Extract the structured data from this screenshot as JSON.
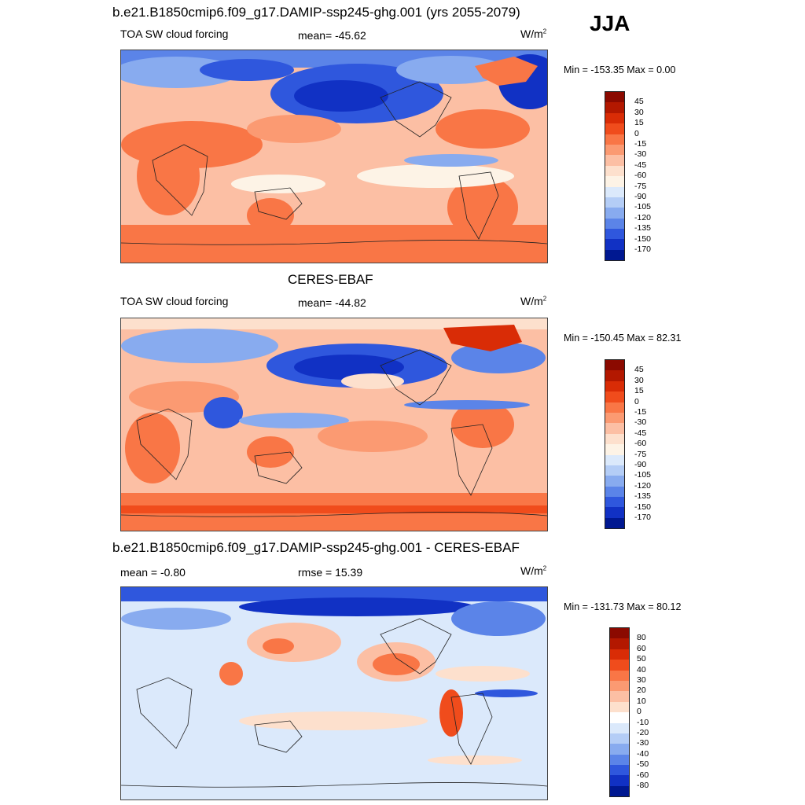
{
  "header": {
    "model_title": "b.e21.B1850cmip6.f09_g17.DAMIP-ssp245-ghg.001 (yrs 2055-2079)",
    "season": "JJA"
  },
  "panels": [
    {
      "id": "model",
      "title": "",
      "left_label": "TOA SW cloud forcing",
      "center_label": "mean= -45.62",
      "units": "W/m",
      "units_sup": "2",
      "minmax": "Min = -153.35 Max =   0.00",
      "colorbar": {
        "labels": [
          "45",
          "30",
          "15",
          "0",
          "-15",
          "-30",
          "-45",
          "-60",
          "-75",
          "-90",
          "-105",
          "-120",
          "-135",
          "-150",
          "-170"
        ],
        "colors": [
          "#8b0a00",
          "#b31800",
          "#d92c06",
          "#f04c1c",
          "#f97646",
          "#fb9a72",
          "#fcbfa4",
          "#fde0cd",
          "#fdf3e6",
          "#dbe9fb",
          "#b4cdf6",
          "#88abef",
          "#5b84e8",
          "#2f57dd",
          "#1131c4",
          "#001891"
        ]
      }
    },
    {
      "id": "obs",
      "title": "CERES-EBAF",
      "left_label": "TOA SW cloud forcing",
      "center_label": "mean= -44.82",
      "units": "W/m",
      "units_sup": "2",
      "minmax": "Min = -150.45 Max =  82.31",
      "colorbar": {
        "labels": [
          "45",
          "30",
          "15",
          "0",
          "-15",
          "-30",
          "-45",
          "-60",
          "-75",
          "-90",
          "-105",
          "-120",
          "-135",
          "-150",
          "-170"
        ],
        "colors": [
          "#8b0a00",
          "#b31800",
          "#d92c06",
          "#f04c1c",
          "#f97646",
          "#fb9a72",
          "#fcbfa4",
          "#fde0cd",
          "#fdf3e6",
          "#dbe9fb",
          "#b4cdf6",
          "#88abef",
          "#5b84e8",
          "#2f57dd",
          "#1131c4",
          "#001891"
        ]
      }
    },
    {
      "id": "diff",
      "title": "b.e21.B1850cmip6.f09_g17.DAMIP-ssp245-ghg.001 - CERES-EBAF",
      "left_label": "mean =  -0.80",
      "center_label": "rmse =  15.39",
      "units": "W/m",
      "units_sup": "2",
      "minmax": "Min = -131.73 Max =  80.12",
      "colorbar": {
        "labels": [
          "80",
          "60",
          "50",
          "40",
          "30",
          "20",
          "10",
          "0",
          "-10",
          "-20",
          "-30",
          "-40",
          "-50",
          "-60",
          "-80"
        ],
        "colors": [
          "#8b0a00",
          "#b31800",
          "#d92c06",
          "#f04c1c",
          "#f97646",
          "#fb9a72",
          "#fcbfa4",
          "#fde0cd",
          "#ffffff",
          "#dbe9fb",
          "#b4cdf6",
          "#88abef",
          "#5b84e8",
          "#2f57dd",
          "#1131c4",
          "#001891"
        ]
      }
    }
  ]
}
